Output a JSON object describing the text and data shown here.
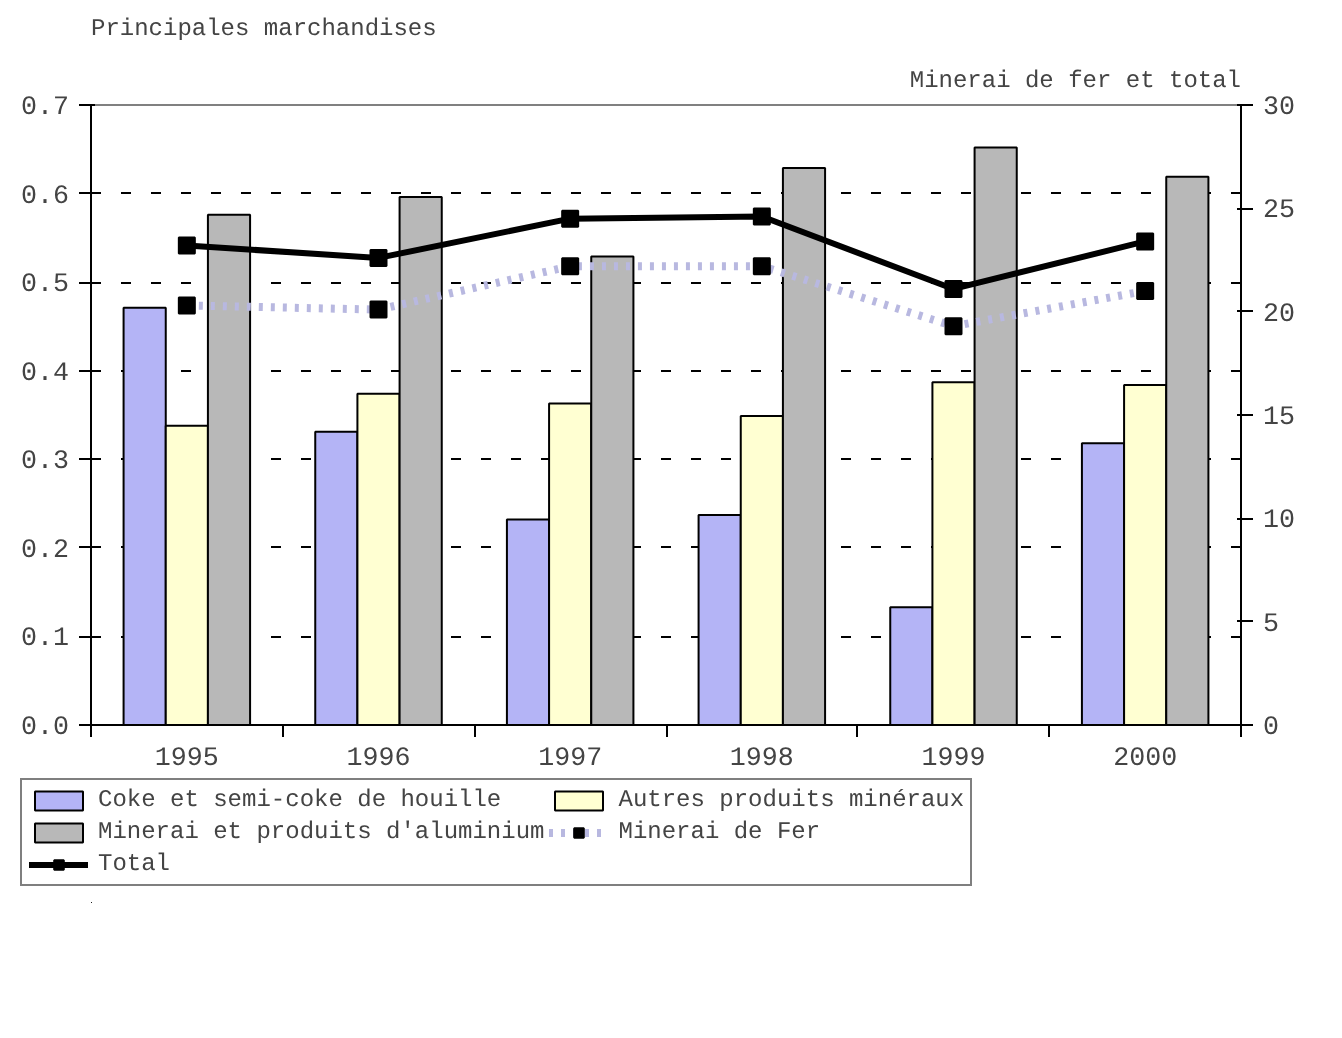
{
  "chart_data": {
    "type": "bar",
    "ylabel": "Principales marchandises",
    "y2label": "Minerai de fer et total",
    "categories": [
      "1995",
      "1996",
      "1997",
      "1998",
      "1999",
      "2000"
    ],
    "series": [
      {
        "name": "Coke et semi-coke de houille",
        "color": "#b4b4f6",
        "values": [
          0.471,
          0.331,
          0.232,
          0.237,
          0.133,
          0.318
        ]
      },
      {
        "name": "Autres produits minéraux",
        "color": "#ffffd2",
        "values": [
          0.338,
          0.374,
          0.363,
          0.349,
          0.387,
          0.384
        ]
      },
      {
        "name": "Minerai et produits d'aluminium",
        "color": "#b8b8b8",
        "values": [
          0.576,
          0.596,
          0.529,
          0.629,
          0.652,
          0.619
        ]
      },
      {
        "name": "Minerai de Fer",
        "type": "line",
        "axis": "y2",
        "line_style": "dotted",
        "color": "#b8b8e0",
        "values": [
          20.3,
          20.1,
          22.2,
          22.2,
          19.3,
          21.0
        ]
      },
      {
        "name": "Total",
        "type": "line",
        "axis": "y2",
        "color": "#000000",
        "values": [
          23.2,
          22.6,
          24.5,
          24.6,
          21.1,
          23.4
        ]
      }
    ],
    "ylim": [
      0,
      0.7
    ],
    "yticks": [
      {
        "value": 0,
        "label": "0.0"
      },
      {
        "value": 0.1,
        "label": "0.1"
      },
      {
        "value": 0.2,
        "label": "0.2"
      },
      {
        "value": 0.3,
        "label": "0.3"
      },
      {
        "value": 0.4,
        "label": "0.4"
      },
      {
        "value": 0.5,
        "label": "0.5"
      },
      {
        "value": 0.6,
        "label": "0.6"
      },
      {
        "value": 0.7,
        "label": "0.7"
      }
    ],
    "y2lim": [
      0,
      30
    ],
    "y2ticks": [
      0,
      5,
      10,
      15,
      20,
      25,
      30
    ],
    "grid": "y",
    "legend": "bottom",
    "marker": "square"
  }
}
